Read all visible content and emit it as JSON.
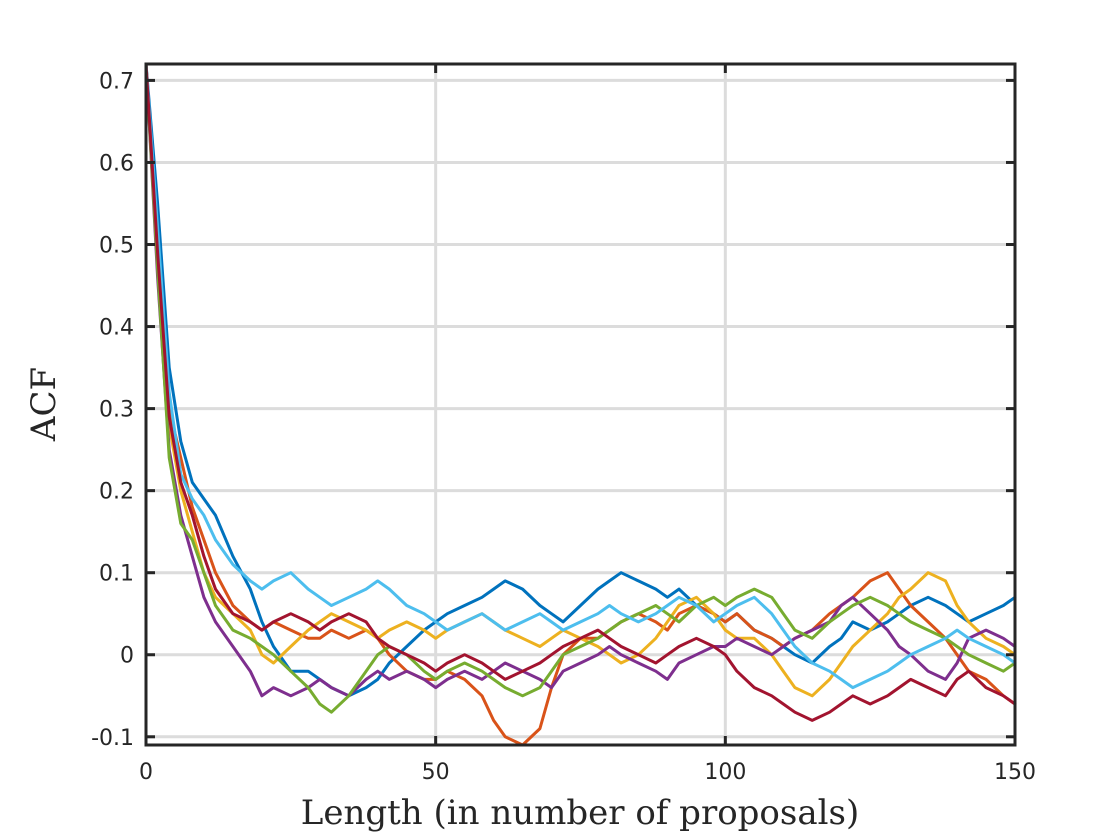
{
  "chart_data": {
    "type": "line",
    "title": "",
    "xlabel": "Length (in number of proposals)",
    "ylabel": "ACF",
    "xlim": [
      0,
      150
    ],
    "ylim": [
      -0.11,
      0.72
    ],
    "grid": true,
    "x_ticks": [
      0,
      50,
      100,
      150
    ],
    "x_tick_labels": [
      "0",
      "50",
      "100",
      "150"
    ],
    "y_ticks": [
      -0.1,
      0,
      0.1,
      0.2,
      0.3,
      0.4,
      0.5,
      0.6,
      0.7
    ],
    "y_tick_labels": [
      "-0.1",
      "0",
      "0.1",
      "0.2",
      "0.3",
      "0.4",
      "0.5",
      "0.6",
      "0.7"
    ],
    "x": [
      0,
      2,
      4,
      6,
      8,
      10,
      12,
      15,
      18,
      20,
      22,
      25,
      28,
      30,
      32,
      35,
      38,
      40,
      42,
      45,
      48,
      50,
      52,
      55,
      58,
      60,
      62,
      65,
      68,
      70,
      72,
      75,
      78,
      80,
      82,
      85,
      88,
      90,
      92,
      95,
      98,
      100,
      102,
      105,
      108,
      110,
      112,
      115,
      118,
      120,
      122,
      125,
      128,
      130,
      132,
      135,
      138,
      140,
      142,
      145,
      148,
      150
    ],
    "series": [
      {
        "color": "#0072BD",
        "values": [
          0.72,
          0.55,
          0.35,
          0.26,
          0.21,
          0.19,
          0.17,
          0.12,
          0.08,
          0.04,
          0.01,
          -0.02,
          -0.02,
          -0.03,
          -0.04,
          -0.05,
          -0.04,
          -0.03,
          -0.01,
          0.01,
          0.03,
          0.04,
          0.05,
          0.06,
          0.07,
          0.08,
          0.09,
          0.08,
          0.06,
          0.05,
          0.04,
          0.06,
          0.08,
          0.09,
          0.1,
          0.09,
          0.08,
          0.07,
          0.08,
          0.06,
          0.05,
          0.04,
          0.05,
          0.03,
          0.02,
          0.01,
          0.0,
          -0.01,
          0.01,
          0.02,
          0.04,
          0.03,
          0.04,
          0.05,
          0.06,
          0.07,
          0.06,
          0.05,
          0.04,
          0.05,
          0.06,
          0.07
        ]
      },
      {
        "color": "#D95319",
        "values": [
          0.72,
          0.5,
          0.3,
          0.24,
          0.18,
          0.14,
          0.1,
          0.06,
          0.04,
          0.03,
          0.04,
          0.03,
          0.02,
          0.02,
          0.03,
          0.02,
          0.03,
          0.02,
          0.0,
          -0.02,
          -0.03,
          -0.03,
          -0.02,
          -0.03,
          -0.05,
          -0.08,
          -0.1,
          -0.11,
          -0.09,
          -0.04,
          0.0,
          0.02,
          0.02,
          0.03,
          0.04,
          0.05,
          0.04,
          0.03,
          0.05,
          0.06,
          0.05,
          0.04,
          0.05,
          0.03,
          0.02,
          0.01,
          0.02,
          0.03,
          0.05,
          0.06,
          0.07,
          0.09,
          0.1,
          0.08,
          0.06,
          0.04,
          0.02,
          0.0,
          -0.02,
          -0.03,
          -0.05,
          -0.06
        ]
      },
      {
        "color": "#EDB120",
        "values": [
          0.72,
          0.48,
          0.28,
          0.2,
          0.15,
          0.1,
          0.07,
          0.05,
          0.03,
          0.0,
          -0.01,
          0.01,
          0.03,
          0.04,
          0.05,
          0.04,
          0.03,
          0.02,
          0.03,
          0.04,
          0.03,
          0.02,
          0.03,
          0.04,
          0.05,
          0.04,
          0.03,
          0.02,
          0.01,
          0.02,
          0.03,
          0.02,
          0.01,
          0.0,
          -0.01,
          0.0,
          0.02,
          0.04,
          0.06,
          0.07,
          0.05,
          0.03,
          0.02,
          0.02,
          0.0,
          -0.02,
          -0.04,
          -0.05,
          -0.03,
          -0.01,
          0.01,
          0.03,
          0.05,
          0.07,
          0.08,
          0.1,
          0.09,
          0.06,
          0.04,
          0.02,
          0.01,
          0.0
        ]
      },
      {
        "color": "#7E2F8E",
        "values": [
          0.72,
          0.46,
          0.25,
          0.17,
          0.12,
          0.07,
          0.04,
          0.01,
          -0.02,
          -0.05,
          -0.04,
          -0.05,
          -0.04,
          -0.03,
          -0.04,
          -0.05,
          -0.03,
          -0.02,
          -0.03,
          -0.02,
          -0.03,
          -0.04,
          -0.03,
          -0.02,
          -0.03,
          -0.02,
          -0.01,
          -0.02,
          -0.03,
          -0.04,
          -0.02,
          -0.01,
          0.0,
          0.01,
          0.0,
          -0.01,
          -0.02,
          -0.03,
          -0.01,
          0.0,
          0.01,
          0.01,
          0.02,
          0.01,
          0.0,
          0.01,
          0.02,
          0.03,
          0.04,
          0.06,
          0.07,
          0.05,
          0.03,
          0.01,
          0.0,
          -0.02,
          -0.03,
          -0.01,
          0.02,
          0.03,
          0.02,
          0.01
        ]
      },
      {
        "color": "#77AC30",
        "values": [
          0.72,
          0.47,
          0.24,
          0.16,
          0.14,
          0.1,
          0.06,
          0.03,
          0.02,
          0.01,
          0.0,
          -0.02,
          -0.04,
          -0.06,
          -0.07,
          -0.05,
          -0.02,
          0.0,
          0.01,
          0.0,
          -0.02,
          -0.03,
          -0.02,
          -0.01,
          -0.02,
          -0.03,
          -0.04,
          -0.05,
          -0.04,
          -0.02,
          0.0,
          0.01,
          0.02,
          0.03,
          0.04,
          0.05,
          0.06,
          0.05,
          0.04,
          0.06,
          0.07,
          0.06,
          0.07,
          0.08,
          0.07,
          0.05,
          0.03,
          0.02,
          0.04,
          0.05,
          0.06,
          0.07,
          0.06,
          0.05,
          0.04,
          0.03,
          0.02,
          0.01,
          0.0,
          -0.01,
          -0.02,
          -0.01
        ]
      },
      {
        "color": "#4DBEEE",
        "values": [
          0.72,
          0.52,
          0.32,
          0.22,
          0.19,
          0.17,
          0.14,
          0.11,
          0.09,
          0.08,
          0.09,
          0.1,
          0.08,
          0.07,
          0.06,
          0.07,
          0.08,
          0.09,
          0.08,
          0.06,
          0.05,
          0.04,
          0.03,
          0.04,
          0.05,
          0.04,
          0.03,
          0.04,
          0.05,
          0.04,
          0.03,
          0.04,
          0.05,
          0.06,
          0.05,
          0.04,
          0.05,
          0.06,
          0.07,
          0.06,
          0.04,
          0.05,
          0.06,
          0.07,
          0.05,
          0.03,
          0.01,
          -0.01,
          -0.02,
          -0.03,
          -0.04,
          -0.03,
          -0.02,
          -0.01,
          0.0,
          0.01,
          0.02,
          0.03,
          0.02,
          0.01,
          0.0,
          -0.01
        ]
      },
      {
        "color": "#A2142F",
        "values": [
          0.72,
          0.49,
          0.29,
          0.21,
          0.17,
          0.12,
          0.08,
          0.05,
          0.04,
          0.03,
          0.04,
          0.05,
          0.04,
          0.03,
          0.04,
          0.05,
          0.04,
          0.02,
          0.01,
          0.0,
          -0.01,
          -0.02,
          -0.01,
          0.0,
          -0.01,
          -0.02,
          -0.03,
          -0.02,
          -0.01,
          0.0,
          0.01,
          0.02,
          0.03,
          0.02,
          0.01,
          0.0,
          -0.01,
          0.0,
          0.01,
          0.02,
          0.01,
          0.0,
          -0.02,
          -0.04,
          -0.05,
          -0.06,
          -0.07,
          -0.08,
          -0.07,
          -0.06,
          -0.05,
          -0.06,
          -0.05,
          -0.04,
          -0.03,
          -0.04,
          -0.05,
          -0.03,
          -0.02,
          -0.04,
          -0.05,
          -0.06
        ]
      }
    ]
  }
}
